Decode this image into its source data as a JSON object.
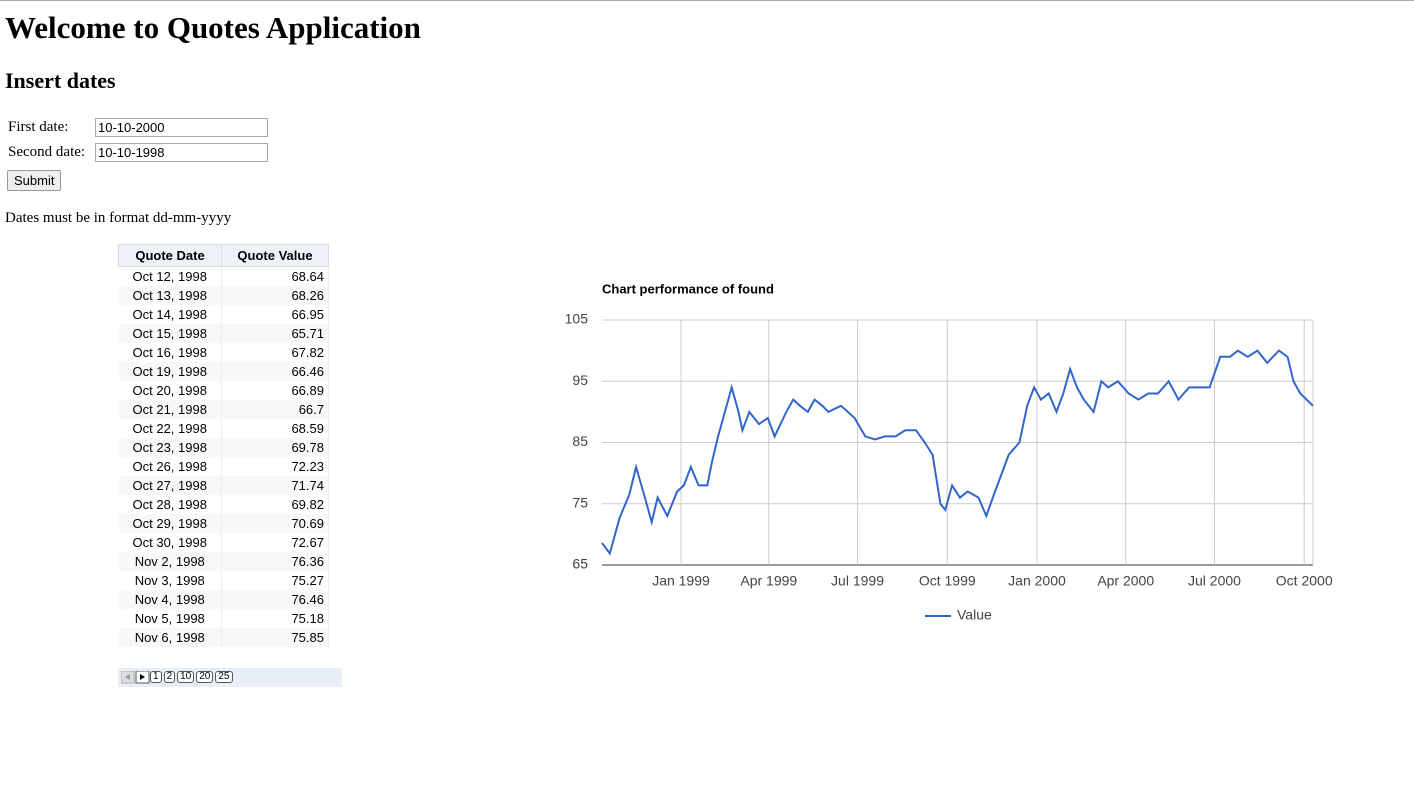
{
  "header": {
    "title": "Welcome to Quotes Application",
    "subtitle": "Insert dates"
  },
  "form": {
    "first_label": "First date:",
    "first_value": "10-10-2000",
    "second_label": "Second date:",
    "second_value": "10-10-1998",
    "submit": "Submit",
    "note": "Dates must be in format dd-mm-yyyy"
  },
  "table": {
    "columns": [
      "Quote Date",
      "Quote Value"
    ],
    "rows": [
      [
        "Oct 12, 1998",
        "68.64"
      ],
      [
        "Oct 13, 1998",
        "68.26"
      ],
      [
        "Oct 14, 1998",
        "66.95"
      ],
      [
        "Oct 15, 1998",
        "65.71"
      ],
      [
        "Oct 16, 1998",
        "67.82"
      ],
      [
        "Oct 19, 1998",
        "66.46"
      ],
      [
        "Oct 20, 1998",
        "66.89"
      ],
      [
        "Oct 21, 1998",
        "66.7"
      ],
      [
        "Oct 22, 1998",
        "68.59"
      ],
      [
        "Oct 23, 1998",
        "69.78"
      ],
      [
        "Oct 26, 1998",
        "72.23"
      ],
      [
        "Oct 27, 1998",
        "71.74"
      ],
      [
        "Oct 28, 1998",
        "69.82"
      ],
      [
        "Oct 29, 1998",
        "70.69"
      ],
      [
        "Oct 30, 1998",
        "72.67"
      ],
      [
        "Nov 2, 1998",
        "76.36"
      ],
      [
        "Nov 3, 1998",
        "75.27"
      ],
      [
        "Nov 4, 1998",
        "76.46"
      ],
      [
        "Nov 5, 1998",
        "75.18"
      ],
      [
        "Nov 6, 1998",
        "75.85"
      ]
    ],
    "pages": [
      "1",
      "2",
      "10",
      "20",
      "25"
    ]
  },
  "chart_data": {
    "type": "line",
    "title": "Chart performance of found",
    "x": [
      "1998-10-12",
      "1998-10-20",
      "1998-10-30",
      "1998-11-09",
      "1998-11-16",
      "1998-11-25",
      "1998-12-02",
      "1998-12-08",
      "1998-12-18",
      "1998-12-28",
      "1999-01-04",
      "1999-01-11",
      "1999-01-19",
      "1999-01-28",
      "1999-02-02",
      "1999-02-08",
      "1999-02-15",
      "1999-02-22",
      "1999-03-01",
      "1999-03-05",
      "1999-03-12",
      "1999-03-22",
      "1999-03-31",
      "1999-04-07",
      "1999-04-19",
      "1999-04-26",
      "1999-05-03",
      "1999-05-11",
      "1999-05-18",
      "1999-05-26",
      "1999-06-01",
      "1999-06-14",
      "1999-06-21",
      "1999-06-28",
      "1999-07-09",
      "1999-07-19",
      "1999-07-29",
      "1999-08-09",
      "1999-08-19",
      "1999-08-30",
      "1999-09-08",
      "1999-09-16",
      "1999-09-24",
      "1999-09-29",
      "1999-10-06",
      "1999-10-14",
      "1999-10-22",
      "1999-11-02",
      "1999-11-10",
      "1999-11-19",
      "1999-11-26",
      "1999-12-03",
      "1999-12-14",
      "1999-12-22",
      "1999-12-29",
      "2000-01-05",
      "2000-01-13",
      "2000-01-21",
      "2000-01-28",
      "2000-02-04",
      "2000-02-11",
      "2000-02-18",
      "2000-02-28",
      "2000-03-07",
      "2000-03-14",
      "2000-03-24",
      "2000-04-04",
      "2000-04-14",
      "2000-04-24",
      "2000-05-04",
      "2000-05-15",
      "2000-05-25",
      "2000-06-05",
      "2000-06-14",
      "2000-06-26",
      "2000-07-07",
      "2000-07-17",
      "2000-07-25",
      "2000-08-04",
      "2000-08-14",
      "2000-08-24",
      "2000-09-05",
      "2000-09-14",
      "2000-09-20",
      "2000-09-27",
      "2000-10-10"
    ],
    "series": [
      {
        "name": "Value",
        "color": "#3366cc",
        "values": [
          68.6,
          66.9,
          72.7,
          76.5,
          81,
          76,
          72,
          76,
          73,
          77,
          78,
          81,
          78,
          78,
          82,
          86,
          90,
          94,
          90,
          87,
          90,
          88,
          89,
          86,
          90,
          92,
          91,
          90,
          92,
          91,
          90,
          91,
          90,
          89,
          86,
          85.5,
          86,
          86,
          87,
          87,
          85,
          83,
          75,
          74,
          78,
          76,
          77,
          76,
          73,
          77,
          80,
          83,
          85,
          91,
          94,
          92,
          93,
          90,
          93,
          97,
          94,
          92,
          90,
          95,
          94,
          95,
          93,
          92,
          93,
          93,
          95,
          92,
          94,
          94,
          94,
          99,
          99,
          100,
          99,
          100,
          98,
          100,
          99,
          95,
          93,
          91
        ]
      }
    ],
    "xlim": [
      "1998-10-12",
      "2000-10-10"
    ],
    "xticks": [
      {
        "value": "1999-01-01",
        "label": "Jan 1999"
      },
      {
        "value": "1999-04-01",
        "label": "Apr 1999"
      },
      {
        "value": "1999-07-01",
        "label": "Jul 1999"
      },
      {
        "value": "1999-10-01",
        "label": "Oct 1999"
      },
      {
        "value": "2000-01-01",
        "label": "Jan 2000"
      },
      {
        "value": "2000-04-01",
        "label": "Apr 2000"
      },
      {
        "value": "2000-07-01",
        "label": "Jul 2000"
      },
      {
        "value": "2000-10-01",
        "label": "Oct 2000"
      }
    ],
    "ylim": [
      65,
      105
    ],
    "yticks": [
      65,
      75,
      85,
      95,
      105
    ],
    "grid": true,
    "legend": "bottom"
  }
}
